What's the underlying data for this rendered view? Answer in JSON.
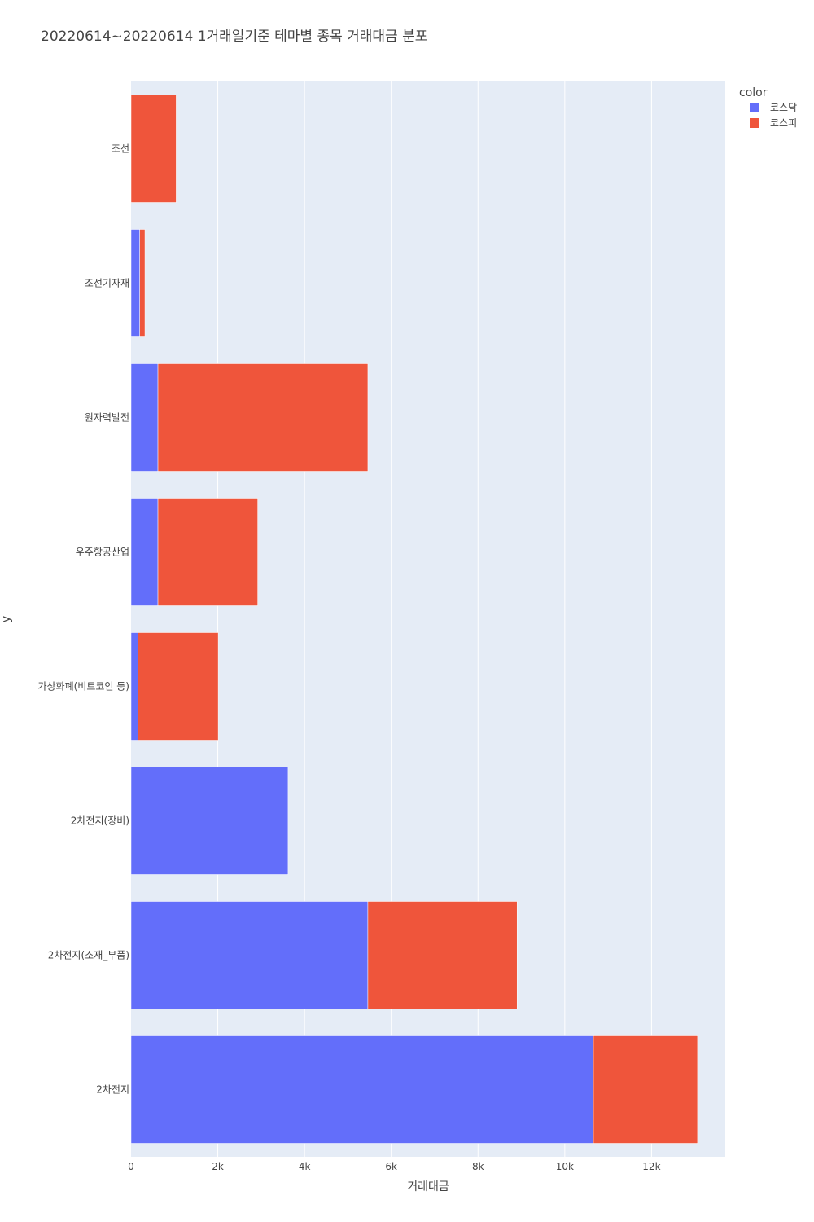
{
  "chart_data": {
    "type": "bar",
    "orientation": "horizontal",
    "barmode": "stack",
    "title": "20220614~20220614 1거래일기준 테마별 종목 거래대금 분포",
    "xlabel": "거래대금",
    "ylabel": "y",
    "xlim": [
      0,
      13700
    ],
    "x_ticks": [
      {
        "value": 0,
        "label": "0"
      },
      {
        "value": 2000,
        "label": "2k"
      },
      {
        "value": 4000,
        "label": "4k"
      },
      {
        "value": 6000,
        "label": "6k"
      },
      {
        "value": 8000,
        "label": "8k"
      },
      {
        "value": 10000,
        "label": "10k"
      },
      {
        "value": 12000,
        "label": "12k"
      }
    ],
    "categories": [
      "조선",
      "조선기자재",
      "원자력발전",
      "우주항공산업",
      "가상화폐(비트코인 등)",
      "2차전지(장비)",
      "2차전지(소재_부품)",
      "2차전지"
    ],
    "legend_title": "color",
    "legend_position": "top-right",
    "grid": true,
    "plot_background": "#e5ecf6",
    "series": [
      {
        "name": "코스닥",
        "color": "#636efa",
        "values": [
          0,
          200,
          620,
          620,
          160,
          3620,
          5460,
          10660
        ]
      },
      {
        "name": "코스피",
        "color": "#ef553b",
        "values": [
          1040,
          120,
          4840,
          2300,
          1850,
          0,
          3440,
          2400
        ]
      }
    ]
  }
}
